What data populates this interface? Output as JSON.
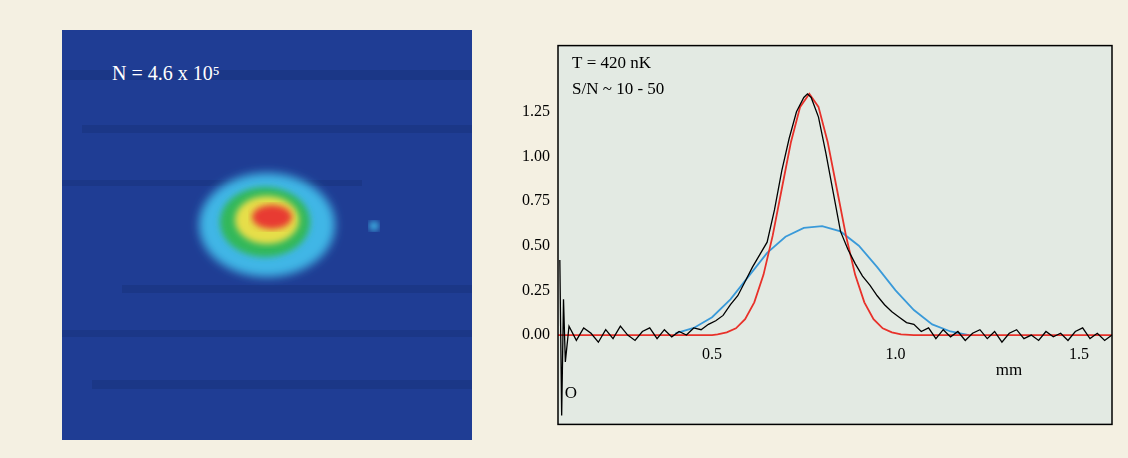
{
  "image_panel": {
    "label": "N = 4.6 x 10⁵"
  },
  "chart_data": {
    "type": "line",
    "annotations": [
      "T = 420 nK",
      "S/N ~ 10 - 50",
      "mm",
      "O"
    ],
    "xlim": [
      0.08,
      1.59
    ],
    "xticks": [
      0.5,
      {
        "value": 1,
        "label": "1.0"
      },
      1.5
    ],
    "ylim": [
      -0.5,
      1.62
    ],
    "yticks": [
      {
        "value": 0,
        "label": "0.00"
      },
      {
        "value": 0.25,
        "label": "0.25"
      },
      {
        "value": 0.5,
        "label": "0.50"
      },
      {
        "value": 0.75,
        "label": "0.75"
      },
      {
        "value": 1,
        "label": "1.00"
      },
      {
        "value": 1.25,
        "label": "1.25"
      }
    ],
    "grid": false,
    "series": [
      {
        "color": "#3a9ad9",
        "x": [
          0.4,
          0.45,
          0.5,
          0.55,
          0.6,
          0.65,
          0.7,
          0.75,
          0.8,
          0.85,
          0.9,
          0.95,
          1.0,
          1.05,
          1.1,
          1.15,
          1.2
        ],
        "values": [
          0.01,
          0.04,
          0.1,
          0.2,
          0.33,
          0.46,
          0.55,
          0.6,
          0.61,
          0.58,
          0.5,
          0.38,
          0.25,
          0.14,
          0.06,
          0.02,
          0.0
        ]
      },
      {
        "color": "#e8312a",
        "x": [
          0.08,
          0.5,
          0.515,
          0.54,
          0.565,
          0.59,
          0.615,
          0.64,
          0.665,
          0.69,
          0.715,
          0.74,
          0.765,
          0.79,
          0.815,
          0.84,
          0.865,
          0.89,
          0.915,
          0.94,
          0.965,
          0.99,
          1.015,
          1.05,
          1.59
        ],
        "values": [
          0,
          0,
          0.004,
          0.015,
          0.038,
          0.089,
          0.183,
          0.337,
          0.555,
          0.819,
          1.081,
          1.277,
          1.35,
          1.277,
          1.081,
          0.819,
          0.555,
          0.337,
          0.183,
          0.089,
          0.038,
          0.015,
          0.004,
          0,
          0
        ]
      },
      {
        "color": "#000000",
        "x": [
          0.085,
          0.09,
          0.095,
          0.1,
          0.11,
          0.13,
          0.15,
          0.17,
          0.19,
          0.21,
          0.23,
          0.25,
          0.27,
          0.29,
          0.31,
          0.33,
          0.35,
          0.37,
          0.39,
          0.41,
          0.43,
          0.45,
          0.47,
          0.49,
          0.51,
          0.53,
          0.55,
          0.57,
          0.59,
          0.61,
          0.63,
          0.65,
          0.67,
          0.69,
          0.71,
          0.73,
          0.75,
          0.76,
          0.77,
          0.79,
          0.81,
          0.83,
          0.85,
          0.87,
          0.89,
          0.91,
          0.93,
          0.95,
          0.97,
          0.99,
          1.01,
          1.03,
          1.05,
          1.07,
          1.09,
          1.11,
          1.13,
          1.15,
          1.17,
          1.19,
          1.21,
          1.23,
          1.25,
          1.27,
          1.29,
          1.31,
          1.33,
          1.35,
          1.37,
          1.39,
          1.41,
          1.43,
          1.45,
          1.47,
          1.49,
          1.51,
          1.53,
          1.55,
          1.57,
          1.59
        ],
        "values": [
          0.42,
          -0.45,
          0.2,
          -0.15,
          0.05,
          -0.03,
          0.04,
          0.01,
          -0.04,
          0.03,
          -0.02,
          0.05,
          0.0,
          -0.03,
          0.02,
          0.04,
          -0.02,
          0.03,
          -0.01,
          0.02,
          0.0,
          0.04,
          0.03,
          0.06,
          0.08,
          0.11,
          0.17,
          0.22,
          0.3,
          0.38,
          0.45,
          0.52,
          0.7,
          0.92,
          1.1,
          1.25,
          1.33,
          1.35,
          1.33,
          1.22,
          1.02,
          0.8,
          0.58,
          0.48,
          0.4,
          0.33,
          0.28,
          0.22,
          0.17,
          0.13,
          0.1,
          0.07,
          0.06,
          0.02,
          0.04,
          -0.02,
          0.03,
          -0.01,
          0.02,
          -0.03,
          0.01,
          0.03,
          -0.02,
          0.02,
          -0.04,
          0.01,
          0.03,
          -0.02,
          0.0,
          -0.03,
          0.02,
          -0.01,
          0.01,
          -0.03,
          0.02,
          0.04,
          -0.02,
          0.01,
          -0.03,
          0.0
        ]
      }
    ]
  }
}
